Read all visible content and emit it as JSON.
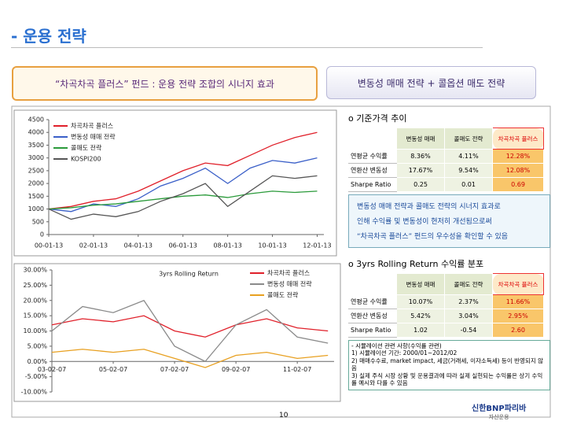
{
  "header": {
    "title": "- 운용 전략",
    "left_box": "“차곡차곡 플러스” 펀드 : 운용 전략 조합의 시너지 효과",
    "right_box": "변동성 매매 전략 + 콜옵션 매도 전략"
  },
  "charts": [
    {
      "type": "line",
      "xlim": [
        2000,
        2012.3
      ],
      "ylim": [
        0,
        4500
      ],
      "xticks": [
        {
          "value": 2000,
          "label": "00-01-13"
        },
        {
          "value": 2002,
          "label": "02-01-13"
        },
        {
          "value": 2004,
          "label": "04-01-13"
        },
        {
          "value": 2006,
          "label": "06-01-13"
        },
        {
          "value": 2008,
          "label": "08-01-13"
        },
        {
          "value": 2010,
          "label": "10-01-13"
        },
        {
          "value": 2012,
          "label": "12-01-13"
        }
      ],
      "yticks": [
        0,
        500,
        1000,
        1500,
        2000,
        2500,
        3000,
        3500,
        4000,
        4500
      ],
      "x": [
        2000,
        2001,
        2002,
        2003,
        2004,
        2005,
        2006,
        2007,
        2008,
        2009,
        2010,
        2011,
        2012
      ],
      "series": [
        {
          "name": "차곡차곡 플러스",
          "color": "#e0202a",
          "values": [
            1000,
            1100,
            1300,
            1400,
            1700,
            2100,
            2500,
            2800,
            2700,
            3100,
            3500,
            3800,
            4000
          ]
        },
        {
          "name": "변동성 매매 전략",
          "color": "#3a5fc8",
          "values": [
            1000,
            900,
            1200,
            1100,
            1400,
            1900,
            2200,
            2600,
            2000,
            2600,
            2900,
            2800,
            3000
          ]
        },
        {
          "name": "콜매도 전략",
          "color": "#2a9a3a",
          "values": [
            1000,
            1050,
            1150,
            1200,
            1300,
            1400,
            1500,
            1550,
            1450,
            1600,
            1700,
            1650,
            1700
          ]
        },
        {
          "name": "KOSPI200",
          "color": "#555555",
          "values": [
            1000,
            600,
            800,
            700,
            900,
            1300,
            1600,
            2000,
            1100,
            1700,
            2300,
            2200,
            2300
          ]
        }
      ]
    },
    {
      "type": "line",
      "title": "3yrs Rolling Return",
      "xlim": [
        2003,
        2012.2
      ],
      "ylim": [
        -10,
        30
      ],
      "xticks": [
        {
          "value": 2003,
          "label": "03-02-07"
        },
        {
          "value": 2005,
          "label": "05-02-07"
        },
        {
          "value": 2007,
          "label": "07-02-07"
        },
        {
          "value": 2009,
          "label": "09-02-07"
        },
        {
          "value": 2011,
          "label": "11-02-07"
        }
      ],
      "yticks": [
        {
          "value": 30,
          "label": "30.00%"
        },
        {
          "value": 25,
          "label": "25.00%"
        },
        {
          "value": 20,
          "label": "20.00%"
        },
        {
          "value": 15,
          "label": "15.00%"
        },
        {
          "value": 10,
          "label": "10.00%"
        },
        {
          "value": 5,
          "label": "5.00%"
        },
        {
          "value": 0,
          "label": "0.00%"
        },
        {
          "value": -5,
          "label": "-5.00%"
        },
        {
          "value": -10,
          "label": "-10.00%"
        }
      ],
      "x": [
        2003,
        2004,
        2005,
        2006,
        2007,
        2008,
        2009,
        2010,
        2011,
        2012
      ],
      "series": [
        {
          "name": "차곡차곡 플러스",
          "color": "#e0202a",
          "values": [
            12,
            14,
            13,
            15,
            10,
            8,
            12,
            14,
            11,
            10
          ]
        },
        {
          "name": "변동성 매매 전략",
          "color": "#8a8a8a",
          "values": [
            10,
            18,
            16,
            20,
            5,
            0,
            12,
            17,
            8,
            6
          ]
        },
        {
          "name": "콜매도 전략",
          "color": "#e8a020",
          "values": [
            3,
            4,
            3,
            4,
            1,
            -2,
            2,
            3,
            1,
            2
          ]
        }
      ]
    }
  ],
  "section1": {
    "heading": "o 기준가격 추이",
    "table": {
      "columns": [
        "변동성 매매",
        "콜매도 전략",
        "차곡차곡 플러스"
      ],
      "rows": [
        [
          "연평균 수익률",
          "8.36%",
          "4.11%",
          "12.28%"
        ],
        [
          "연환산 변동성",
          "17.67%",
          "9.54%",
          "12.08%"
        ],
        [
          "Sharpe Ratio",
          "0.25",
          "0.01",
          "0.69"
        ]
      ]
    },
    "summary": [
      "변동성 매매 전략과 콜매도 전략의 시너지 효과로",
      "인해 수익률 및 변동성이 현저히 개선됨으로써",
      "“차곡차곡 플러스” 펀드의 우수성을 확인할 수 있음"
    ]
  },
  "section2": {
    "heading": "o 3yrs Rolling Return 수익률 분포",
    "table": {
      "columns": [
        "변동성 매매",
        "콜매도 전략",
        "차곡차곡 플러스"
      ],
      "rows": [
        [
          "연평균 수익률",
          "10.07%",
          "2.37%",
          "11.66%"
        ],
        [
          "연환산 변동성",
          "5.42%",
          "3.04%",
          "2.95%"
        ],
        [
          "Sharpe Ratio",
          "1.02",
          "-0.54",
          "2.60"
        ]
      ]
    },
    "notes": [
      "- 시뮬레이션 관련 사항(수익률 관련)",
      "1) 시뮬레이션 기간: 2000/01~2012/02",
      "2) 매매수수료, market impact, 세금(거래세, 이자소득세) 등이 반영되지 않음",
      "3) 실제 주식 시장 상황 및 운용결과에 따라 실제 실현되는 수익률은 상기 수익률 예시와 다를 수 있음"
    ]
  },
  "footer": {
    "page": "10",
    "logo": "신한BNP파리바",
    "logo_sub": "자산운용"
  }
}
